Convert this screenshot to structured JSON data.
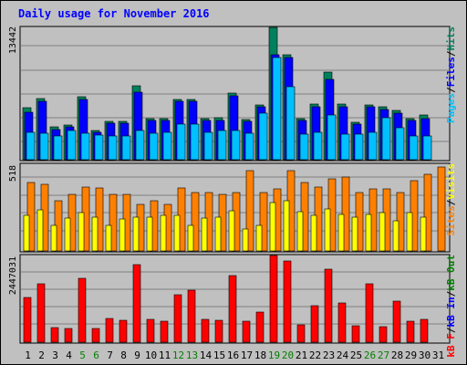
{
  "title": "Daily usage for November 2016",
  "colors": {
    "background": "#c0c0c0",
    "frame": "#ffffff",
    "title": "#0000ff",
    "hits": "#00805c",
    "files": "#0000ff",
    "pages": "#00c0ff",
    "visits": "#ffff00",
    "sites": "#ff8000",
    "kbin": "#0000ff",
    "kbout": "#008000",
    "kbf": "#ff0000",
    "weekend": "#008000",
    "weekday": "#000000"
  },
  "top_panel": {
    "ymax_label": "13442",
    "legend": [
      {
        "key": "pages",
        "text": "Pages"
      },
      {
        "key": "sep",
        "text": "/"
      },
      {
        "key": "files",
        "text": "Files"
      },
      {
        "key": "sep",
        "text": "/"
      },
      {
        "key": "hits",
        "text": "Hits"
      }
    ]
  },
  "mid_panel": {
    "ymax_label": "518",
    "legend": [
      {
        "key": "sites",
        "text": "Sites"
      },
      {
        "key": "sep",
        "text": "/"
      },
      {
        "key": "visits",
        "text": "Visits"
      }
    ]
  },
  "bot_panel": {
    "ymax_label": "2447031",
    "legend": [
      {
        "key": "kbf",
        "text": "kB F"
      },
      {
        "key": "sep",
        "text": "/"
      },
      {
        "key": "kbin",
        "text": "kB In"
      },
      {
        "key": "sep",
        "text": "/"
      },
      {
        "key": "kbout",
        "text": "kB Out"
      }
    ]
  },
  "chart_data": [
    {
      "type": "bar",
      "categories": [
        "1",
        "2",
        "3",
        "4",
        "5",
        "6",
        "7",
        "8",
        "9",
        "10",
        "11",
        "12",
        "13",
        "14",
        "15",
        "16",
        "17",
        "18",
        "19",
        "20",
        "21",
        "22",
        "23",
        "24",
        "25",
        "26",
        "27",
        "28",
        "29",
        "30",
        "31"
      ],
      "weekend_days": [
        "5",
        "6",
        "12",
        "13",
        "19",
        "20",
        "26",
        "27"
      ],
      "ylim": [
        0,
        13442
      ],
      "series": [
        {
          "name": "Hits",
          "values": [
            5300,
            6200,
            3300,
            3500,
            6400,
            3000,
            3900,
            3900,
            7500,
            4200,
            4200,
            6100,
            6100,
            4200,
            4300,
            6800,
            4100,
            5600,
            13400,
            10700,
            4200,
            5700,
            8900,
            5700,
            3800,
            5600,
            5400,
            5000,
            4200,
            4500,
            0
          ]
        },
        {
          "name": "Files",
          "values": [
            4800,
            5900,
            3100,
            3300,
            6100,
            2800,
            3700,
            3700,
            6900,
            4000,
            4000,
            5900,
            5900,
            4000,
            4000,
            6500,
            3900,
            5400,
            10700,
            10400,
            4000,
            5400,
            8200,
            5400,
            3600,
            5400,
            5100,
            4700,
            4000,
            4200,
            0
          ]
        },
        {
          "name": "Pages",
          "values": [
            2800,
            2700,
            2400,
            3000,
            2700,
            2500,
            2400,
            2400,
            3000,
            2700,
            2800,
            3600,
            3600,
            2800,
            3000,
            3000,
            2700,
            4700,
            10400,
            7400,
            2600,
            2800,
            4500,
            2600,
            2600,
            2800,
            4300,
            3200,
            2400,
            2400,
            0
          ]
        }
      ]
    },
    {
      "type": "bar",
      "categories": [
        "1",
        "2",
        "3",
        "4",
        "5",
        "6",
        "7",
        "8",
        "9",
        "10",
        "11",
        "12",
        "13",
        "14",
        "15",
        "16",
        "17",
        "18",
        "19",
        "20",
        "21",
        "22",
        "23",
        "24",
        "25",
        "26",
        "27",
        "28",
        "29",
        "30",
        "31"
      ],
      "ylim": [
        0,
        518
      ],
      "series": [
        {
          "name": "Sites",
          "values": [
            410,
            400,
            300,
            340,
            380,
            375,
            340,
            340,
            280,
            300,
            280,
            375,
            350,
            350,
            340,
            350,
            480,
            350,
            370,
            480,
            410,
            380,
            430,
            440,
            350,
            370,
            370,
            350,
            420,
            460,
            500
          ]
        },
        {
          "name": "Visits",
          "values": [
            210,
            245,
            150,
            195,
            230,
            200,
            150,
            190,
            200,
            200,
            210,
            210,
            150,
            195,
            200,
            240,
            130,
            150,
            290,
            300,
            235,
            210,
            250,
            220,
            200,
            220,
            230,
            180,
            230,
            200,
            0
          ]
        }
      ]
    },
    {
      "type": "bar",
      "categories": [
        "1",
        "2",
        "3",
        "4",
        "5",
        "6",
        "7",
        "8",
        "9",
        "10",
        "11",
        "12",
        "13",
        "14",
        "15",
        "16",
        "17",
        "18",
        "19",
        "20",
        "21",
        "22",
        "23",
        "24",
        "25",
        "26",
        "27",
        "28",
        "29",
        "30",
        "31"
      ],
      "ylim": [
        0,
        2447031
      ],
      "series": [
        {
          "name": "kB F",
          "values": [
            1250000,
            1650000,
            420000,
            390000,
            1800000,
            390000,
            670000,
            620000,
            2180000,
            650000,
            580000,
            1330000,
            1460000,
            650000,
            620000,
            1870000,
            590000,
            840000,
            2447031,
            2280000,
            500000,
            1020000,
            2060000,
            1120000,
            470000,
            1650000,
            430000,
            1170000,
            580000,
            640000,
            0
          ]
        }
      ]
    }
  ]
}
